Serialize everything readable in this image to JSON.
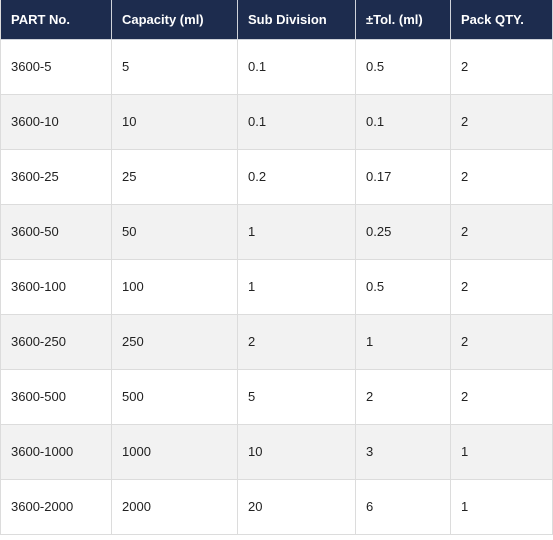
{
  "table": {
    "headers": [
      "PART No.",
      "Capacity (ml)",
      "Sub Division",
      "±Tol. (ml)",
      "Pack QTY."
    ],
    "rows": [
      [
        "3600-5",
        "5",
        "0.1",
        "0.5",
        "2"
      ],
      [
        "3600-10",
        "10",
        "0.1",
        "0.1",
        "2"
      ],
      [
        "3600-25",
        "25",
        "0.2",
        "0.17",
        "2"
      ],
      [
        "3600-50",
        "50",
        "1",
        "0.25",
        "2"
      ],
      [
        "3600-100",
        "100",
        "1",
        "0.5",
        "2"
      ],
      [
        "3600-250",
        "250",
        "2",
        "1",
        "2"
      ],
      [
        "3600-500",
        "500",
        "5",
        "2",
        "2"
      ],
      [
        "3600-1000",
        "1000",
        "10",
        "3",
        "1"
      ],
      [
        "3600-2000",
        "2000",
        "20",
        "6",
        "1"
      ]
    ]
  },
  "colors": {
    "header_background": "#1d2c4e",
    "header_text": "#ffffff",
    "row_alt_background": "#f2f2f2",
    "border": "#dcdcdc"
  }
}
